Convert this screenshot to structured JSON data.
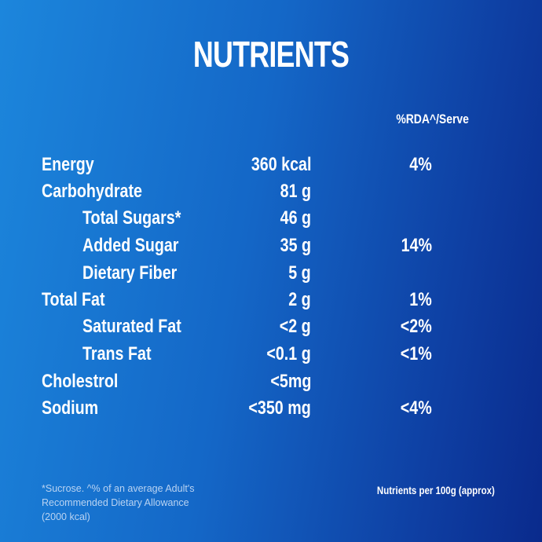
{
  "header": {
    "title": "NUTRIENTS",
    "column": "%RDA^/Serve"
  },
  "table": {
    "rows": [
      {
        "name": "Energy",
        "amount": "360 kcal",
        "rda": "4%",
        "indent": false
      },
      {
        "name": "Carbohydrate",
        "amount": "81 g",
        "indent": false
      },
      {
        "name": "Total Sugars*",
        "amount": "46 g",
        "indent": true
      },
      {
        "name": "Added Sugar",
        "amount": "35 g",
        "rda": "14%",
        "indent": true
      },
      {
        "name": "Dietary Fiber",
        "amount": "5 g",
        "indent": true
      },
      {
        "name": "Total Fat",
        "amount": "2 g",
        "rda": "1%",
        "indent": false
      },
      {
        "name": "Saturated Fat",
        "amount": "<2 g",
        "rda": "<2%",
        "indent": true
      },
      {
        "name": "Trans Fat",
        "amount": "<0.1 g",
        "rda": "<1%",
        "indent": true
      },
      {
        "name": "Cholestrol",
        "amount": "<5mg",
        "indent": false
      },
      {
        "name": "Sodium",
        "amount": "<350 mg",
        "rda": "<4%",
        "indent": false
      }
    ]
  },
  "footer": {
    "footnote": [
      "*Sucrose. ^% of an average Adult's",
      "Recommended Dietary Allowance",
      "(2000 kcal)"
    ],
    "note": "Nutrients per 100g (approx)"
  }
}
